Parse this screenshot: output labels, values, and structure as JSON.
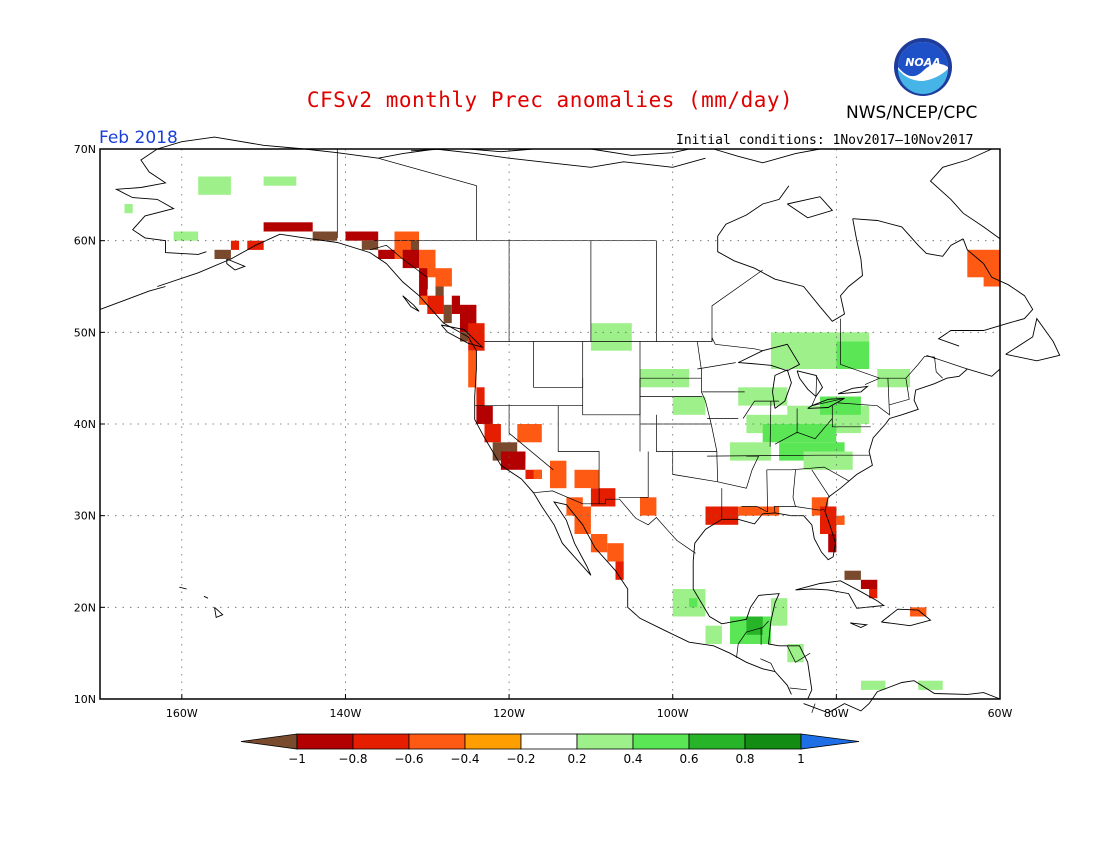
{
  "title": "CFSv2 monthly Prec anomalies (mm/day)",
  "agency": "NWS/NCEP/CPC",
  "logo": {
    "name": "noaa-logo",
    "text": "NOAA"
  },
  "period": "Feb 2018",
  "initial_conditions": "Initial conditions: 1Nov2017–10Nov2017",
  "map": {
    "extent": {
      "lon_min": -170,
      "lon_max": -60,
      "lat_min": 10,
      "lat_max": 70
    },
    "lat_ticks": [
      {
        "value": 70,
        "label": "70N"
      },
      {
        "value": 60,
        "label": "60N"
      },
      {
        "value": 50,
        "label": "50N"
      },
      {
        "value": 40,
        "label": "40N"
      },
      {
        "value": 30,
        "label": "30N"
      },
      {
        "value": 20,
        "label": "20N"
      },
      {
        "value": 10,
        "label": "10N"
      }
    ],
    "lon_ticks": [
      {
        "value": -160,
        "label": "160W"
      },
      {
        "value": -140,
        "label": "140W"
      },
      {
        "value": -120,
        "label": "120W"
      },
      {
        "value": -100,
        "label": "100W"
      },
      {
        "value": -80,
        "label": "80W"
      },
      {
        "value": -60,
        "label": "60W"
      }
    ],
    "grid": "dotted",
    "anomaly_regions": [
      {
        "region": "Pacific Northwest / British Columbia coast",
        "category": "<-1"
      },
      {
        "region": "Southern Alaska coast",
        "category": "-0.8"
      },
      {
        "region": "California",
        "category": "-0.8"
      },
      {
        "region": "Arizona / New Mexico",
        "category": "-0.4"
      },
      {
        "region": "Northwest Mexico",
        "category": "-0.4"
      },
      {
        "region": "Gulf Coast",
        "category": "-0.6"
      },
      {
        "region": "Florida",
        "category": "-0.6"
      },
      {
        "region": "Cuba",
        "category": "<-1"
      },
      {
        "region": "Labrador",
        "category": "-0.4"
      },
      {
        "region": "Ohio / Tennessee Valley",
        "category": "0.6"
      },
      {
        "region": "Great Lakes",
        "category": "0.4"
      },
      {
        "region": "Northern Plains",
        "category": "0.4"
      },
      {
        "region": "Central America",
        "category": "0.8"
      },
      {
        "region": "Southwest Alaska",
        "category": "0.4"
      }
    ]
  },
  "colorbar": {
    "labels": [
      "−1",
      "−0.8",
      "−0.6",
      "−0.4",
      "−0.2",
      "0.2",
      "0.4",
      "0.6",
      "0.8",
      "1"
    ],
    "colors": [
      "#7a4a2f",
      "#b30000",
      "#e61e00",
      "#ff5a14",
      "#ff9e00",
      "#ffffff",
      "#9ef08a",
      "#5ae655",
      "#28b428",
      "#128c12",
      "#1e6ee6"
    ]
  }
}
